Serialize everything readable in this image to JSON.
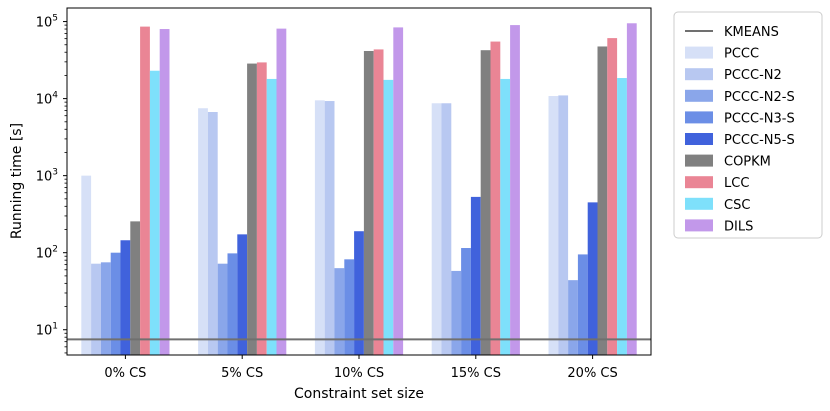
{
  "chart_data": {
    "type": "bar",
    "title": "",
    "xlabel": "Constraint set size",
    "ylabel": "Running time [s]",
    "yscale": "log",
    "ylim": [
      4.7,
      150000
    ],
    "categories": [
      "0% CS",
      "5% CS",
      "10% CS",
      "15% CS",
      "20% CS"
    ],
    "yticks": [
      {
        "value": 10,
        "base": "10",
        "exp": "1"
      },
      {
        "value": 100,
        "base": "10",
        "exp": "2"
      },
      {
        "value": 1000,
        "base": "10",
        "exp": "3"
      },
      {
        "value": 10000,
        "base": "10",
        "exp": "4"
      },
      {
        "value": 100000,
        "base": "10",
        "exp": "5"
      }
    ],
    "reference_line": {
      "name": "KMEANS",
      "value": 7.5,
      "color": "#707070"
    },
    "legend_position": "outside-right",
    "series": [
      {
        "name": "PCCC",
        "color": "#d6e0f7",
        "values": [
          1000,
          7500,
          9500,
          8700,
          10800
        ]
      },
      {
        "name": "PCCC-N2",
        "color": "#b8c8f1",
        "values": [
          72,
          6700,
          9300,
          8700,
          11000
        ]
      },
      {
        "name": "PCCC-N2-S",
        "color": "#8aa6ea",
        "values": [
          75,
          72,
          63,
          58,
          44
        ]
      },
      {
        "name": "PCCC-N3-S",
        "color": "#6b8ee6",
        "values": [
          100,
          98,
          82,
          115,
          95
        ]
      },
      {
        "name": "PCCC-N5-S",
        "color": "#4062dc",
        "values": [
          145,
          173,
          190,
          530,
          450
        ]
      },
      {
        "name": "COPKM",
        "color": "#808080",
        "values": [
          255,
          28500,
          41500,
          42500,
          47500
        ]
      },
      {
        "name": "LCC",
        "color": "#ea8595",
        "values": [
          86000,
          29500,
          43500,
          55000,
          61000
        ]
      },
      {
        "name": "CSC",
        "color": "#7ee0fb",
        "values": [
          23000,
          18000,
          17500,
          18000,
          18500
        ]
      },
      {
        "name": "DILS",
        "color": "#c298ea",
        "values": [
          80000,
          81000,
          84000,
          90000,
          95000
        ]
      }
    ]
  }
}
